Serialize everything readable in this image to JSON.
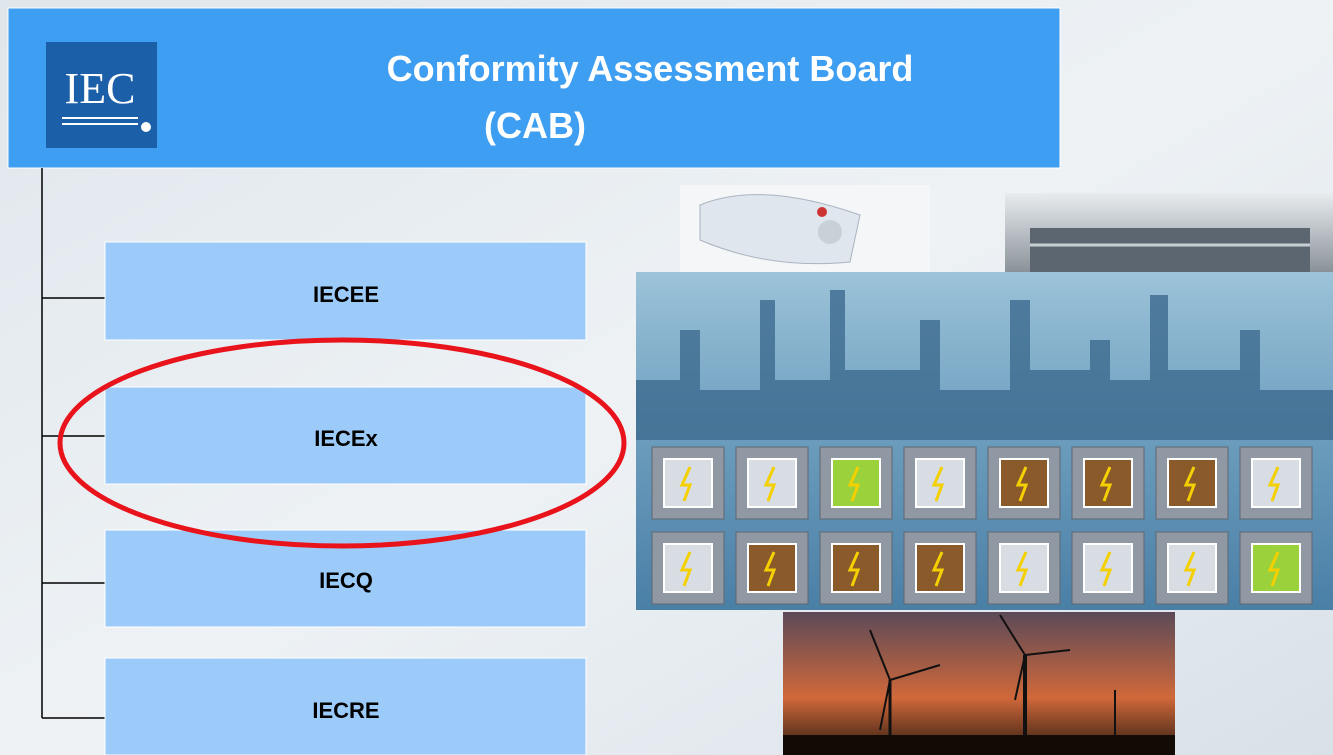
{
  "header": {
    "logo": "IEC",
    "title": [
      "Conformity Assessment Board",
      "(CAB)"
    ]
  },
  "nodes": [
    {
      "label": "IECEE"
    },
    {
      "label": "IECEx"
    },
    {
      "label": "IECQ"
    },
    {
      "label": "IECRE"
    }
  ]
}
